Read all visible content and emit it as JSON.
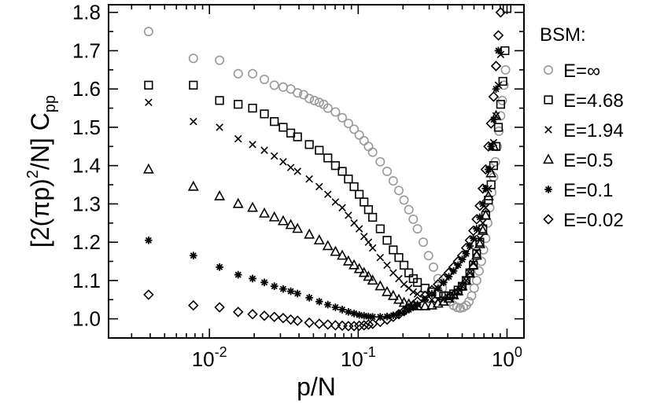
{
  "chart_data": {
    "type": "scatter",
    "x_scale": "log",
    "xlim": [
      0.0021,
      1.3
    ],
    "ylim": [
      0.95,
      1.82
    ],
    "grid": false,
    "xlabel": "p/N",
    "ylabel": {
      "pre": "[2(",
      "pi": "π",
      "mid": "p)",
      "sup": "2",
      "post": "/N] C",
      "sub": "pp"
    },
    "x_ticks": [
      {
        "base": "10",
        "exp": "-2",
        "value": 0.01
      },
      {
        "base": "10",
        "exp": "-1",
        "value": 0.1
      },
      {
        "base": "10",
        "exp": "0",
        "value": 1
      }
    ],
    "y_ticks": [
      "1.0",
      "1.1",
      "1.2",
      "1.3",
      "1.4",
      "1.5",
      "1.6",
      "1.7",
      "1.8"
    ],
    "legend": {
      "title": "BSM:",
      "placement": "right",
      "entries": [
        "E=∞",
        "E=4.68",
        "E=1.94",
        "E=0.5",
        "E=0.1",
        "E=0.02"
      ]
    },
    "series": [
      {
        "name": "E=∞",
        "marker": "circle",
        "color": "#999999",
        "x": [
          0.0039,
          0.0078,
          0.0117,
          0.0156,
          0.0195,
          0.0234,
          0.0273,
          0.0313,
          0.0352,
          0.0391,
          0.043,
          0.0469,
          0.0508,
          0.0547,
          0.0586,
          0.0625,
          0.0703,
          0.0781,
          0.0859,
          0.0938,
          0.1016,
          0.1094,
          0.1172,
          0.125,
          0.1406,
          0.1563,
          0.1719,
          0.1875,
          0.2031,
          0.2188,
          0.2344,
          0.25,
          0.2734,
          0.2969,
          0.3203,
          0.3438,
          0.3672,
          0.3906,
          0.4141,
          0.4375,
          0.4609,
          0.4844,
          0.5078,
          0.5313,
          0.5547,
          0.5781,
          0.6016,
          0.625,
          0.6484,
          0.6719,
          0.6953,
          0.7188,
          0.7422,
          0.7656,
          0.7891,
          0.8125,
          0.8359,
          0.8594,
          0.8828,
          0.9063,
          0.9297,
          0.9531,
          0.9766
        ],
        "y": [
          1.75,
          1.68,
          1.675,
          1.64,
          1.64,
          1.625,
          1.61,
          1.605,
          1.6,
          1.59,
          1.585,
          1.575,
          1.57,
          1.565,
          1.56,
          1.55,
          1.54,
          1.525,
          1.51,
          1.495,
          1.48,
          1.465,
          1.45,
          1.435,
          1.41,
          1.385,
          1.36,
          1.335,
          1.31,
          1.285,
          1.26,
          1.235,
          1.2,
          1.165,
          1.135,
          1.105,
          1.08,
          1.06,
          1.045,
          1.035,
          1.03,
          1.028,
          1.03,
          1.035,
          1.045,
          1.06,
          1.08,
          1.1,
          1.125,
          1.15,
          1.18,
          1.21,
          1.25,
          1.29,
          1.33,
          1.37,
          1.41,
          1.45,
          1.49,
          1.53,
          1.57,
          1.61,
          1.65
        ]
      },
      {
        "name": "E=4.68",
        "marker": "square",
        "color": "#000000",
        "x": [
          0.0039,
          0.0078,
          0.0117,
          0.0156,
          0.0195,
          0.0234,
          0.0273,
          0.0313,
          0.0352,
          0.0391,
          0.0469,
          0.0547,
          0.0625,
          0.0703,
          0.0781,
          0.0859,
          0.0938,
          0.1016,
          0.1094,
          0.1172,
          0.125,
          0.1406,
          0.1563,
          0.1719,
          0.1875,
          0.2031,
          0.2188,
          0.2344,
          0.25,
          0.2813,
          0.3125,
          0.3438,
          0.375,
          0.4063,
          0.4375,
          0.4688,
          0.5,
          0.5313,
          0.5625,
          0.5938,
          0.625,
          0.6563,
          0.6875,
          0.7188,
          0.75,
          0.7813,
          0.8125,
          0.8438,
          0.875,
          0.9063,
          0.9375,
          0.9688,
          1.0
        ],
        "y": [
          1.61,
          1.61,
          1.57,
          1.56,
          1.55,
          1.535,
          1.515,
          1.5,
          1.485,
          1.475,
          1.455,
          1.44,
          1.42,
          1.4,
          1.385,
          1.365,
          1.345,
          1.325,
          1.305,
          1.285,
          1.265,
          1.235,
          1.205,
          1.18,
          1.16,
          1.14,
          1.12,
          1.105,
          1.095,
          1.08,
          1.07,
          1.065,
          1.06,
          1.06,
          1.065,
          1.075,
          1.085,
          1.1,
          1.12,
          1.14,
          1.17,
          1.2,
          1.235,
          1.27,
          1.31,
          1.35,
          1.4,
          1.45,
          1.5,
          1.56,
          1.62,
          1.7,
          1.81
        ]
      },
      {
        "name": "E=1.94",
        "marker": "x",
        "color": "#000000",
        "x": [
          0.0039,
          0.0078,
          0.0117,
          0.0156,
          0.0195,
          0.0234,
          0.0273,
          0.0313,
          0.0352,
          0.0391,
          0.0469,
          0.0547,
          0.0625,
          0.0703,
          0.0781,
          0.0859,
          0.0938,
          0.1016,
          0.1094,
          0.1172,
          0.125,
          0.1406,
          0.1563,
          0.1719,
          0.1875,
          0.2031,
          0.2188,
          0.2344,
          0.25,
          0.2813,
          0.3125,
          0.3438,
          0.375,
          0.4063,
          0.4375,
          0.4688,
          0.5,
          0.5313,
          0.5625,
          0.5938,
          0.625,
          0.6563,
          0.6875,
          0.7188,
          0.75,
          0.7813,
          0.8125,
          0.8438,
          0.875,
          0.9063
        ],
        "y": [
          1.565,
          1.515,
          1.5,
          1.47,
          1.455,
          1.44,
          1.425,
          1.41,
          1.395,
          1.385,
          1.365,
          1.345,
          1.325,
          1.305,
          1.29,
          1.27,
          1.25,
          1.235,
          1.215,
          1.2,
          1.185,
          1.16,
          1.14,
          1.12,
          1.105,
          1.09,
          1.08,
          1.07,
          1.065,
          1.055,
          1.05,
          1.05,
          1.05,
          1.055,
          1.06,
          1.07,
          1.085,
          1.1,
          1.12,
          1.145,
          1.175,
          1.21,
          1.25,
          1.29,
          1.34,
          1.39,
          1.46,
          1.53,
          1.61,
          1.69
        ]
      },
      {
        "name": "E=0.5",
        "marker": "triangle",
        "color": "#000000",
        "x": [
          0.0039,
          0.0078,
          0.0117,
          0.0156,
          0.0195,
          0.0234,
          0.0273,
          0.0313,
          0.0352,
          0.0391,
          0.0469,
          0.0547,
          0.0625,
          0.0703,
          0.0781,
          0.0859,
          0.0938,
          0.1016,
          0.1094,
          0.1172,
          0.125,
          0.1406,
          0.1563,
          0.1719,
          0.1875,
          0.2031,
          0.2188,
          0.2344,
          0.25,
          0.2813,
          0.3125,
          0.3438,
          0.375,
          0.4063,
          0.4375,
          0.4688,
          0.5,
          0.5313,
          0.5625,
          0.5938,
          0.625,
          0.6563,
          0.6875,
          0.7188,
          0.75,
          0.7813,
          0.8125,
          0.8438
        ],
        "y": [
          1.39,
          1.345,
          1.32,
          1.3,
          1.29,
          1.275,
          1.265,
          1.255,
          1.245,
          1.235,
          1.22,
          1.205,
          1.19,
          1.175,
          1.165,
          1.15,
          1.14,
          1.13,
          1.12,
          1.11,
          1.1,
          1.085,
          1.07,
          1.06,
          1.05,
          1.042,
          1.038,
          1.035,
          1.033,
          1.033,
          1.035,
          1.04,
          1.045,
          1.053,
          1.062,
          1.072,
          1.085,
          1.1,
          1.118,
          1.14,
          1.165,
          1.195,
          1.23,
          1.27,
          1.32,
          1.38,
          1.45,
          1.53
        ]
      },
      {
        "name": "E=0.1",
        "marker": "star",
        "color": "#000000",
        "x": [
          0.0039,
          0.0078,
          0.0117,
          0.0156,
          0.0195,
          0.0234,
          0.0273,
          0.0313,
          0.0352,
          0.0391,
          0.0469,
          0.0547,
          0.0625,
          0.0703,
          0.0781,
          0.0859,
          0.0938,
          0.1016,
          0.1094,
          0.1172,
          0.125,
          0.1406,
          0.1563,
          0.1719,
          0.1875,
          0.2031,
          0.2188,
          0.2344,
          0.25,
          0.2813,
          0.3125,
          0.3438,
          0.375,
          0.4063,
          0.4375,
          0.4688,
          0.5,
          0.5313,
          0.5625,
          0.5938,
          0.625,
          0.6563,
          0.6875,
          0.7188,
          0.75,
          0.7813,
          0.8125,
          0.8438,
          0.875
        ],
        "y": [
          1.205,
          1.165,
          1.135,
          1.115,
          1.105,
          1.095,
          1.085,
          1.078,
          1.072,
          1.066,
          1.055,
          1.045,
          1.037,
          1.03,
          1.024,
          1.018,
          1.014,
          1.01,
          1.008,
          1.006,
          1.005,
          1.005,
          1.006,
          1.009,
          1.013,
          1.018,
          1.024,
          1.03,
          1.037,
          1.05,
          1.065,
          1.08,
          1.095,
          1.11,
          1.125,
          1.14,
          1.155,
          1.17,
          1.19,
          1.21,
          1.235,
          1.265,
          1.3,
          1.34,
          1.39,
          1.45,
          1.52,
          1.6,
          1.7
        ]
      },
      {
        "name": "E=0.02",
        "marker": "diamond",
        "color": "#000000",
        "x": [
          0.0039,
          0.0078,
          0.0117,
          0.0156,
          0.0195,
          0.0234,
          0.0273,
          0.0313,
          0.0352,
          0.0391,
          0.0469,
          0.0547,
          0.0625,
          0.0703,
          0.0781,
          0.0859,
          0.0938,
          0.1016,
          0.1094,
          0.1172,
          0.125,
          0.1406,
          0.1563,
          0.1719,
          0.1875,
          0.2031,
          0.2188,
          0.2344,
          0.25,
          0.2813,
          0.3125,
          0.3438,
          0.375,
          0.4063,
          0.4375,
          0.4688,
          0.5,
          0.5313,
          0.5625,
          0.5938,
          0.625,
          0.6563,
          0.6875,
          0.7188,
          0.75,
          0.7813,
          0.8125,
          0.8438,
          0.875,
          0.9063
        ],
        "y": [
          1.063,
          1.035,
          1.03,
          1.018,
          1.012,
          1.008,
          1.005,
          1.002,
          0.998,
          0.995,
          0.99,
          0.987,
          0.985,
          0.983,
          0.982,
          0.981,
          0.981,
          0.982,
          0.983,
          0.985,
          0.987,
          0.992,
          0.998,
          1.005,
          1.012,
          1.02,
          1.028,
          1.036,
          1.045,
          1.06,
          1.075,
          1.09,
          1.105,
          1.12,
          1.135,
          1.15,
          1.165,
          1.185,
          1.205,
          1.23,
          1.26,
          1.295,
          1.34,
          1.39,
          1.45,
          1.51,
          1.58,
          1.66,
          1.74,
          1.8
        ]
      }
    ]
  }
}
